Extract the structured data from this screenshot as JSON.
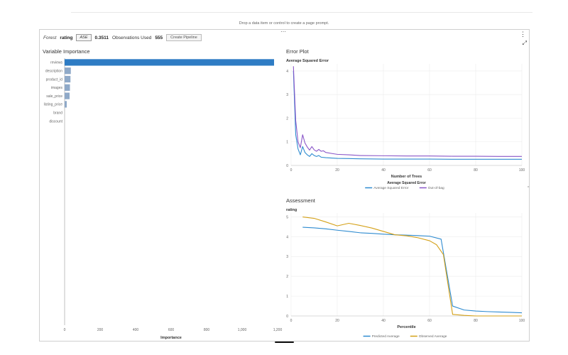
{
  "drop_prompt": "Drop a data item or control to create a page prompt.",
  "toolbar": {
    "model_name": "Forest",
    "response": "rating",
    "stat_label": "ASE",
    "stat_value": "0.3511",
    "obs_label": "Observations Used",
    "obs_value": "555",
    "pipeline_label": "Create Pipeline"
  },
  "colors": {
    "bar": "#2e7cc4",
    "bar_muted": "#8fa9c8",
    "blue_line": "#2e8bd0",
    "purple_line": "#8a56c8",
    "gold_line": "#d4a017"
  },
  "chart_data": [
    {
      "type": "bar",
      "orientation": "horizontal",
      "title": "Variable Importance",
      "categories": [
        "reviews",
        "description",
        "product_id",
        "images",
        "sale_price",
        "listing_price",
        "brand",
        "discount"
      ],
      "values": [
        1180,
        35,
        33,
        30,
        28,
        12,
        0,
        0
      ],
      "xlabel": "Importance",
      "xlim": [
        0,
        1200
      ],
      "xticks": [
        "0",
        "200",
        "400",
        "600",
        "800",
        "1,000",
        "1,200"
      ],
      "grid": false
    },
    {
      "type": "line",
      "title": "Error Plot",
      "subtitle": "Average Squared Error",
      "xlabel": "Number of Trees",
      "xlim": [
        0,
        100
      ],
      "ylim": [
        0,
        4.3
      ],
      "xticks": [
        "0",
        "20",
        "40",
        "60",
        "80",
        "100"
      ],
      "yticks": [
        "0",
        "1",
        "2",
        "3",
        "4"
      ],
      "legend_title": "Average Squared Error",
      "legend_position": "bottom",
      "grid": true,
      "series": [
        {
          "name": "Average Squared Error",
          "color": "#2e8bd0",
          "points": [
            [
              1,
              4.0
            ],
            [
              2,
              1.3
            ],
            [
              3,
              0.7
            ],
            [
              4,
              0.45
            ],
            [
              5,
              0.8
            ],
            [
              6,
              0.55
            ],
            [
              7,
              0.45
            ],
            [
              8,
              0.38
            ],
            [
              9,
              0.5
            ],
            [
              10,
              0.42
            ],
            [
              11,
              0.38
            ],
            [
              12,
              0.42
            ],
            [
              13,
              0.35
            ],
            [
              15,
              0.33
            ],
            [
              18,
              0.31
            ],
            [
              20,
              0.3
            ],
            [
              25,
              0.29
            ],
            [
              30,
              0.28
            ],
            [
              40,
              0.27
            ],
            [
              50,
              0.27
            ],
            [
              60,
              0.27
            ],
            [
              70,
              0.26
            ],
            [
              80,
              0.26
            ],
            [
              90,
              0.26
            ],
            [
              100,
              0.26
            ]
          ]
        },
        {
          "name": "Out-of-bag",
          "color": "#8a56c8",
          "points": [
            [
              1,
              4.2
            ],
            [
              2,
              1.9
            ],
            [
              3,
              1.0
            ],
            [
              4,
              0.75
            ],
            [
              5,
              1.3
            ],
            [
              6,
              0.95
            ],
            [
              7,
              0.78
            ],
            [
              8,
              0.65
            ],
            [
              9,
              0.8
            ],
            [
              10,
              0.66
            ],
            [
              11,
              0.6
            ],
            [
              12,
              0.68
            ],
            [
              13,
              0.6
            ],
            [
              14,
              0.62
            ],
            [
              15,
              0.55
            ],
            [
              18,
              0.5
            ],
            [
              20,
              0.47
            ],
            [
              25,
              0.45
            ],
            [
              30,
              0.42
            ],
            [
              40,
              0.41
            ],
            [
              50,
              0.4
            ],
            [
              60,
              0.4
            ],
            [
              70,
              0.39
            ],
            [
              80,
              0.39
            ],
            [
              90,
              0.38
            ],
            [
              100,
              0.38
            ]
          ]
        }
      ]
    },
    {
      "type": "line",
      "title": "Assessment",
      "subtitle": "rating",
      "xlabel": "Percentile",
      "xlim": [
        0,
        100
      ],
      "ylim": [
        0,
        5.2
      ],
      "xticks": [
        "0",
        "20",
        "40",
        "60",
        "80",
        "100"
      ],
      "yticks": [
        "0",
        "1",
        "2",
        "3",
        "4",
        "5"
      ],
      "legend_position": "bottom",
      "grid": true,
      "series": [
        {
          "name": "Predicted Average",
          "color": "#2e8bd0",
          "points": [
            [
              5,
              4.48
            ],
            [
              10,
              4.45
            ],
            [
              15,
              4.4
            ],
            [
              20,
              4.33
            ],
            [
              25,
              4.27
            ],
            [
              30,
              4.2
            ],
            [
              35,
              4.17
            ],
            [
              40,
              4.13
            ],
            [
              45,
              4.1
            ],
            [
              50,
              4.08
            ],
            [
              55,
              4.06
            ],
            [
              60,
              4.03
            ],
            [
              65,
              3.88
            ],
            [
              70,
              0.5
            ],
            [
              75,
              0.3
            ],
            [
              80,
              0.25
            ],
            [
              85,
              0.22
            ],
            [
              90,
              0.2
            ],
            [
              95,
              0.18
            ],
            [
              100,
              0.16
            ]
          ]
        },
        {
          "name": "Observed Average",
          "color": "#d4a017",
          "points": [
            [
              5,
              5.0
            ],
            [
              10,
              4.93
            ],
            [
              15,
              4.75
            ],
            [
              20,
              4.55
            ],
            [
              25,
              4.68
            ],
            [
              30,
              4.57
            ],
            [
              35,
              4.44
            ],
            [
              40,
              4.27
            ],
            [
              45,
              4.1
            ],
            [
              50,
              4.05
            ],
            [
              55,
              3.95
            ],
            [
              60,
              3.8
            ],
            [
              63,
              3.6
            ],
            [
              66,
              3.1
            ],
            [
              70,
              0.08
            ],
            [
              75,
              0.03
            ],
            [
              80,
              0.0
            ],
            [
              85,
              0.0
            ],
            [
              90,
              0.0
            ],
            [
              95,
              0.0
            ],
            [
              100,
              0.0
            ]
          ]
        }
      ]
    }
  ]
}
